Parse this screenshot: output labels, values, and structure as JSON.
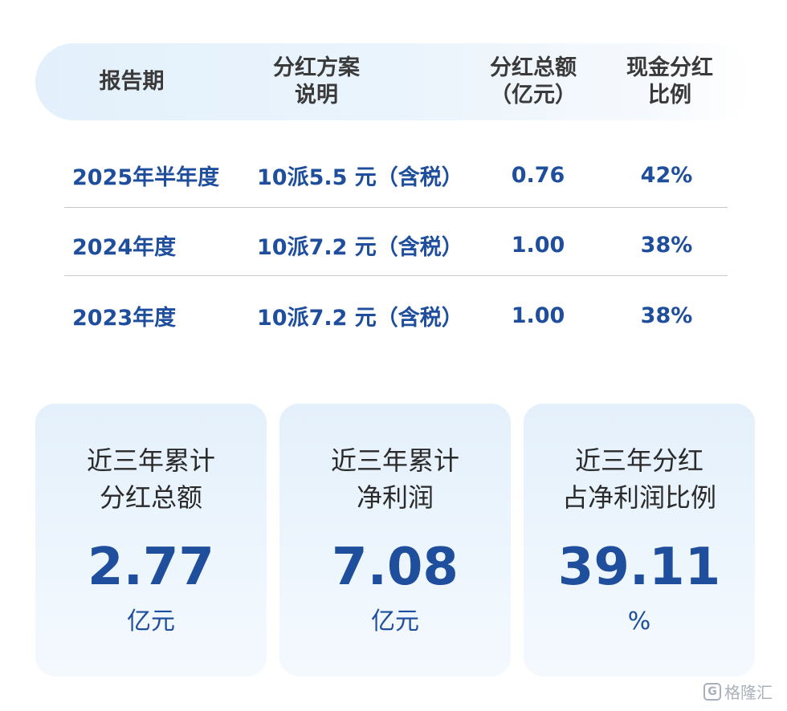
{
  "table": {
    "headers": [
      "报告期",
      "分红方案\n说明",
      "分红总额\n（亿元）",
      "现金分红\n比例"
    ],
    "rows": [
      {
        "period": "2025年半年度",
        "plan": "10派5.5 元（含税）",
        "total": "0.76",
        "ratio": "42%"
      },
      {
        "period": "2024年度",
        "plan": "10派7.2 元（含税）",
        "total": "1.00",
        "ratio": "38%"
      },
      {
        "period": "2023年度",
        "plan": "10派7.2 元（含税）",
        "total": "1.00",
        "ratio": "38%"
      }
    ]
  },
  "cards": [
    {
      "title": "近三年累计\n分红总额",
      "value": "2.77",
      "unit": "亿元"
    },
    {
      "title": "近三年累计\n净利润",
      "value": "7.08",
      "unit": "亿元"
    },
    {
      "title": "近三年分红\n占净利润比例",
      "value": "39.11",
      "unit": "%"
    }
  ],
  "watermark": {
    "text": "格隆汇",
    "logo_glyph": "G"
  },
  "colors": {
    "accent": "#1e4e9c",
    "header_bg": "#e3f0fb",
    "card_bg": "#e9f3fc"
  }
}
